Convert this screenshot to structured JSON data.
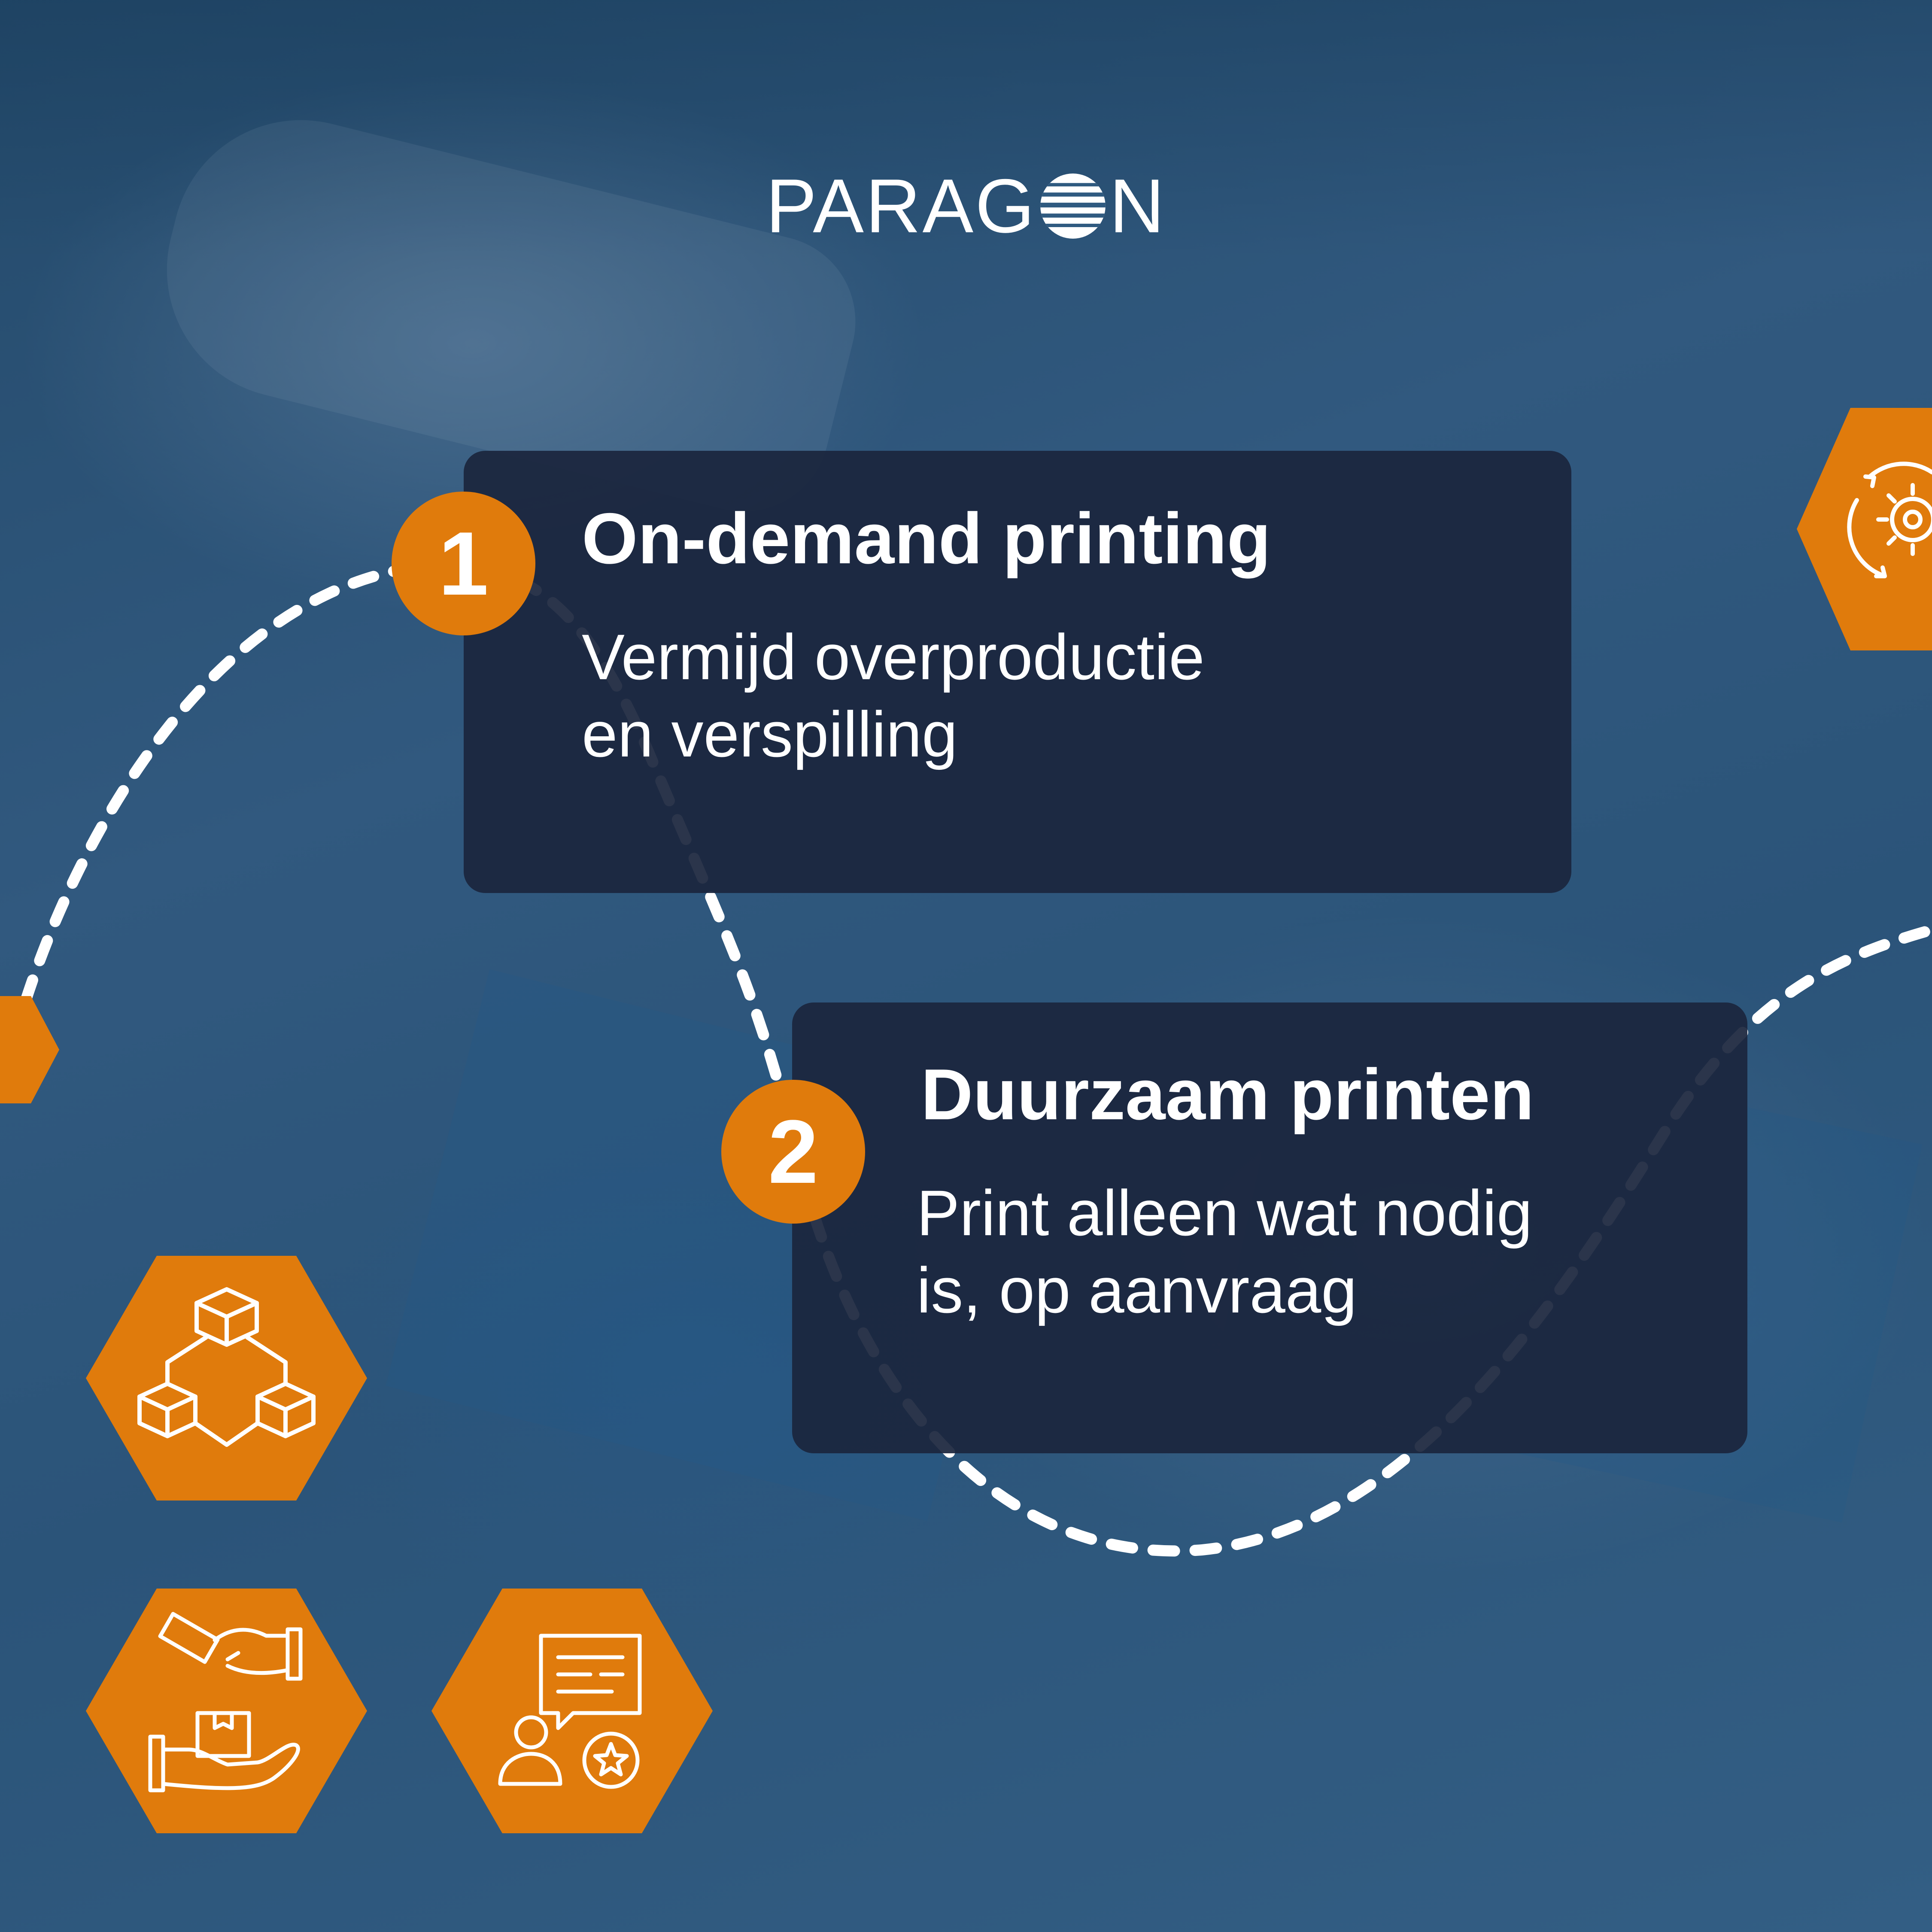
{
  "brand": {
    "logo_text_left": "PARAG",
    "logo_text_right": "N"
  },
  "steps": [
    {
      "number": "1",
      "title": "On-demand printing",
      "description_line1": "Vermijd overproductie",
      "description_line2": "en verspilling"
    },
    {
      "number": "2",
      "title": "Duurzaam printen",
      "description_line1": "Print alleen wat nodig",
      "description_line2": "is, op aanvraag"
    }
  ],
  "icons": [
    "gear-cycle-icon",
    "boxes-network-icon",
    "payment-delivery-icon",
    "customer-review-icon"
  ],
  "colors": {
    "accent_orange": "#e07b0c",
    "card_bg": "#1b263d",
    "background_blue": "#2d5679",
    "text": "#ffffff"
  }
}
